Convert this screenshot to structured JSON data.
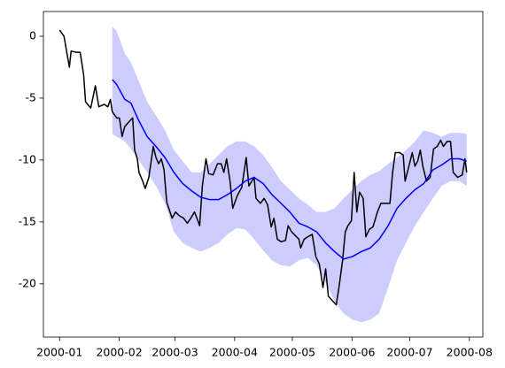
{
  "chart_data": {
    "type": "line",
    "xlim": [
      -8.4,
      220.0
    ],
    "xticks": [
      {
        "value": 0,
        "label": "2000-01"
      },
      {
        "value": 31,
        "label": "2000-02"
      },
      {
        "value": 60,
        "label": "2000-03"
      },
      {
        "value": 91,
        "label": "2000-04"
      },
      {
        "value": 121,
        "label": "2000-05"
      },
      {
        "value": 152,
        "label": "2000-06"
      },
      {
        "value": 182,
        "label": "2000-07"
      },
      {
        "value": 213,
        "label": "2000-08"
      }
    ],
    "ylim": [
      -24.3,
      2.0
    ],
    "yticks": [
      -20,
      -15,
      -10,
      -5,
      0
    ],
    "grid": false,
    "band": {
      "color": "#0000ff",
      "alpha": 0.2,
      "x": [
        27.4,
        29.7,
        33.9,
        37.1,
        40.8,
        45.5,
        50.1,
        54.8,
        59.4,
        64.0,
        68.7,
        73.3,
        78.0,
        82.6,
        87.2,
        91.9,
        96.5,
        101.1,
        105.8,
        110.4,
        115.1,
        119.7,
        124.4,
        129.0,
        133.6,
        138.3,
        142.9,
        147.6,
        152.2,
        156.8,
        161.5,
        166.1,
        170.8,
        175.4,
        180.0,
        184.7,
        189.3,
        194.0,
        198.6,
        203.2,
        207.9,
        211.6
      ],
      "upper": [
        0.8,
        0.4,
        -1.4,
        -2.1,
        -3.5,
        -5.3,
        -6.4,
        -7.6,
        -9.2,
        -10.1,
        -11,
        -11,
        -10.3,
        -9.6,
        -8.9,
        -8.5,
        -8.5,
        -8.9,
        -9.6,
        -10.6,
        -11.7,
        -12.4,
        -13.1,
        -13.6,
        -14.2,
        -14.2,
        -13.9,
        -13.1,
        -12.4,
        -11.7,
        -11.2,
        -10.9,
        -10.3,
        -9.8,
        -9.2,
        -8.5,
        -7.6,
        -7.8,
        -8.1,
        -7.8,
        -7.8,
        -7.9
      ],
      "lower": [
        -7.9,
        -8.1,
        -8.5,
        -9.1,
        -9.9,
        -11,
        -12.1,
        -13.5,
        -15.8,
        -16.7,
        -17.1,
        -17.4,
        -17.1,
        -16.7,
        -16,
        -15.5,
        -15.6,
        -16.4,
        -17.3,
        -18.1,
        -18.5,
        -18.6,
        -18.1,
        -17.9,
        -18.5,
        -19.9,
        -21.4,
        -22.4,
        -22.9,
        -23.1,
        -22.9,
        -22.4,
        -20.3,
        -18.1,
        -16.7,
        -15.3,
        -14.2,
        -13.1,
        -12.1,
        -11.7,
        -11.7,
        -12.1
      ]
    },
    "series": [
      {
        "color": "#000000",
        "x": [
          0,
          2.3,
          5.1,
          6.0,
          8.8,
          10.7,
          12.5,
          13.5,
          16.2,
          18.6,
          20.4,
          23.2,
          25.1,
          26.4,
          27.4,
          29.7,
          31.1,
          32.5,
          33.9,
          36.7,
          38.0,
          39.0,
          40.4,
          41.3,
          43.2,
          44.5,
          46.4,
          48.7,
          50.1,
          51.5,
          52.9,
          54.3,
          55.7,
          58.5,
          60.3,
          62.2,
          64.5,
          66.4,
          68.2,
          70.1,
          71.9,
          72.8,
          74.2,
          76.1,
          77.5,
          79.8,
          82.1,
          84.0,
          85.4,
          86.8,
          88.6,
          90.0,
          92.3,
          94.7,
          97.0,
          98.4,
          101.1,
          102.1,
          104.4,
          106.3,
          108.1,
          110.0,
          111.4,
          113.2,
          115.1,
          117.4,
          118.8,
          120.6,
          122.5,
          124.4,
          125.3,
          127.1,
          129.0,
          131.3,
          133.2,
          135.0,
          136.9,
          138.3,
          139.7,
          142.0,
          143.8,
          145.2,
          147.1,
          148.5,
          149.9,
          151.7,
          153.1,
          154.5,
          155.9,
          157.8,
          159.2,
          161.0,
          162.9,
          165.2,
          167.0,
          169.8,
          171.7,
          173.1,
          174.5,
          176.8,
          178.6,
          179.6,
          181.4,
          183.3,
          184.7,
          186.1,
          187.5,
          188.8,
          190.7,
          192.6,
          194.4,
          196.3,
          198.1,
          199.5,
          201.4,
          203.2,
          204.6,
          206.9,
          209.3,
          210.7,
          211.6
        ],
        "values": [
          0.5,
          0,
          -2.5,
          -1.2,
          -1.3,
          -1.3,
          -3.1,
          -5.3,
          -5.8,
          -4,
          -5.7,
          -5.5,
          -5.7,
          -5.1,
          -6.1,
          -6.6,
          -6.6,
          -8.1,
          -7.3,
          -6.8,
          -6.6,
          -9.2,
          -9.9,
          -11,
          -11.7,
          -12.3,
          -11.4,
          -8.9,
          -9.8,
          -10.3,
          -9.9,
          -10.8,
          -13.4,
          -14.7,
          -14.2,
          -14.5,
          -14.7,
          -15.1,
          -14.7,
          -14.2,
          -14.9,
          -15.3,
          -12.1,
          -9.9,
          -11.1,
          -11.2,
          -10.3,
          -10.3,
          -11,
          -9.9,
          -11.7,
          -13.9,
          -12.9,
          -12.2,
          -9.8,
          -12.1,
          -11.4,
          -13.1,
          -13.5,
          -13.1,
          -13.6,
          -15.4,
          -14.7,
          -16.4,
          -16.6,
          -16.5,
          -15.3,
          -15.8,
          -16.1,
          -16.4,
          -17.1,
          -16.4,
          -16.2,
          -16,
          -17.8,
          -18.4,
          -20.3,
          -18.8,
          -21,
          -21.4,
          -21.7,
          -20.3,
          -18.1,
          -15.8,
          -15.3,
          -14.9,
          -11,
          -14.2,
          -12.6,
          -13.1,
          -16.2,
          -15.6,
          -15.4,
          -14.2,
          -13.5,
          -13.5,
          -13.5,
          -11,
          -9.4,
          -9.4,
          -9.6,
          -11.7,
          -10.6,
          -9.4,
          -10.5,
          -10.1,
          -9.2,
          -10.5,
          -11.7,
          -11.4,
          -9.1,
          -8.9,
          -8.4,
          -8.9,
          -8.5,
          -8.5,
          -11,
          -11.4,
          -11.2,
          -9.9,
          -11
        ]
      },
      {
        "color": "#0000ff",
        "x": [
          27.4,
          29.7,
          33.9,
          37.1,
          40.8,
          45.5,
          50.1,
          54.8,
          59.4,
          64.0,
          68.7,
          73.3,
          78.0,
          82.6,
          87.2,
          91.9,
          96.5,
          101.1,
          105.8,
          110.4,
          115.1,
          119.7,
          124.4,
          129.0,
          133.6,
          138.3,
          142.9,
          147.6,
          152.2,
          156.8,
          161.5,
          166.1,
          170.8,
          175.4,
          180.0,
          184.7,
          189.3,
          194.0,
          198.6,
          203.2,
          207.9,
          211.6
        ],
        "values": [
          -3.5,
          -3.9,
          -5.1,
          -5.4,
          -6.7,
          -8.1,
          -8.9,
          -9.8,
          -11,
          -11.9,
          -12.5,
          -13,
          -13.2,
          -13.2,
          -12.8,
          -12.3,
          -11.7,
          -11.4,
          -11.9,
          -12.8,
          -13.5,
          -14.2,
          -15.1,
          -15.4,
          -15.8,
          -16.7,
          -17.4,
          -18,
          -17.8,
          -17.4,
          -17.1,
          -16.4,
          -15.3,
          -13.9,
          -13.1,
          -12.4,
          -11.9,
          -10.8,
          -10.4,
          -9.9,
          -9.9,
          -10.1
        ]
      }
    ]
  }
}
